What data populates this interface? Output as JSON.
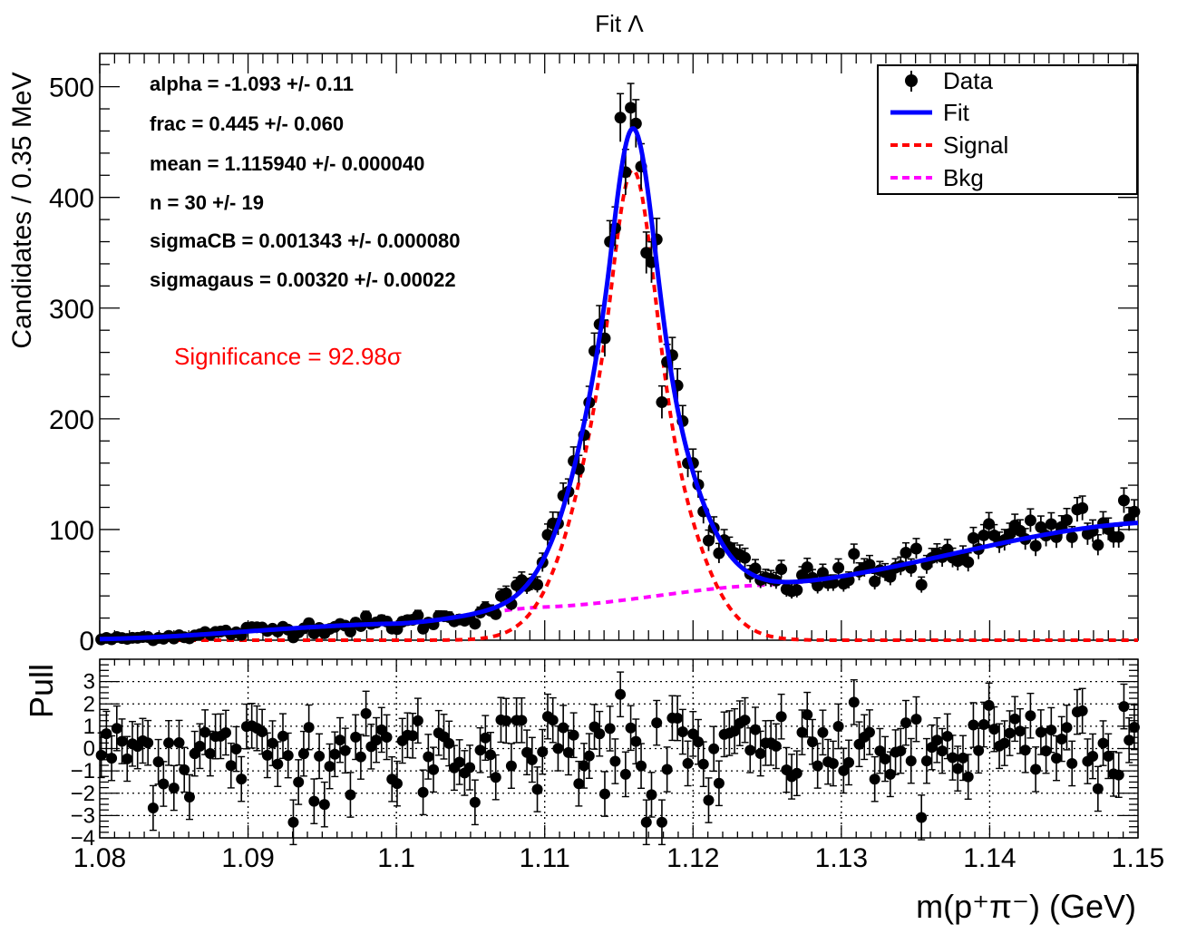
{
  "chart_data": {
    "type": "scatter",
    "title": "Fit   Λ",
    "ylabel": "Candidates / 0.35 MeV",
    "xlabel": "m(p⁺π⁻) (GeV)",
    "xlim": [
      1.08,
      1.15
    ],
    "ylim": [
      0,
      530
    ],
    "x_ticks": [
      "1.08",
      "1.09",
      "1.1",
      "1.11",
      "1.12",
      "1.13",
      "1.14",
      "1.15"
    ],
    "y_ticks": [
      "0",
      "100",
      "200",
      "300",
      "400",
      "500"
    ],
    "fit_params": [
      "alpha = -1.093 +/- 0.11",
      "frac =  0.445 +/- 0.060",
      "mean =  1.115940 +/- 0.000040",
      "n =  30 +/- 19",
      "sigmaCB =  0.001343 +/- 0.000080",
      "sigmagaus =  0.00320 +/- 0.00022"
    ],
    "significance": "Significance = 92.98σ",
    "legend": [
      {
        "label": "Data",
        "style": "marker",
        "color": "#000000"
      },
      {
        "label": "Fit",
        "style": "solid",
        "color": "#0000ff"
      },
      {
        "label": "Signal",
        "style": "dashed",
        "color": "#ff0000"
      },
      {
        "label": "Bkg",
        "style": "dashed",
        "color": "#ff00ff"
      }
    ],
    "model": {
      "mean": 1.11594,
      "signal_peak": 425,
      "sigma_cb": 0.001343,
      "sigma_gaus": 0.0032,
      "frac": 0.445,
      "bkg": {
        "x": [
          1.08,
          1.1,
          1.11,
          1.125,
          1.15
        ],
        "y": [
          1,
          15,
          30,
          50,
          106
        ]
      }
    },
    "data_points": {
      "x_start": 1.0801,
      "bin_width": 0.00035,
      "n_bins": 200,
      "anomalies": [
        {
          "x": 1.1152,
          "y": 472
        },
        {
          "x": 1.1159,
          "y": 481
        },
        {
          "x": 1.1145,
          "y": 360
        },
        {
          "x": 1.117,
          "y": 350
        },
        {
          "x": 1.118,
          "y": 215
        },
        {
          "x": 1.121,
          "y": 90
        },
        {
          "x": 1.1355,
          "y": 50
        },
        {
          "x": 1.14,
          "y": 105
        },
        {
          "x": 1.146,
          "y": 118
        }
      ]
    },
    "pull": {
      "ylabel": "Pull",
      "ylim": [
        -4,
        4
      ],
      "y_ticks": [
        "3",
        "2",
        "1",
        "0",
        "−1",
        "−2",
        "−3",
        "−4"
      ],
      "gridlines": [
        -3,
        -2,
        -1,
        0,
        1,
        2,
        3
      ]
    },
    "colors": {
      "fit": "#0000ff",
      "signal": "#ff0000",
      "bkg": "#ff00ff",
      "data": "#000000",
      "significance": "#ff0000"
    }
  }
}
